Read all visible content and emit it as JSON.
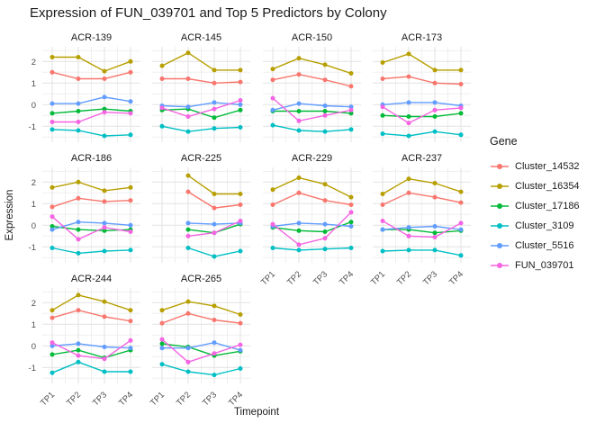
{
  "chart_data": {
    "type": "line",
    "title": "Expression of FUN_039701 and Top 5 Predictors by Colony",
    "xlabel": "Timepoint",
    "ylabel": "Expression",
    "legend_title": "Gene",
    "categories": [
      "TP1",
      "TP2",
      "TP3",
      "TP4"
    ],
    "ylim": [
      -1.74,
      2.68
    ],
    "yticks": [
      2,
      1,
      0,
      -1
    ],
    "yticks_minor": [
      2.5,
      1.5,
      0.5,
      -0.5,
      -1.5
    ],
    "grid": true,
    "legend_position": "right",
    "series": [
      {
        "name": "Cluster_14532",
        "color": "#F8766D"
      },
      {
        "name": "Cluster_16354",
        "color": "#B79F00"
      },
      {
        "name": "Cluster_17186",
        "color": "#00BA38"
      },
      {
        "name": "Cluster_3109",
        "color": "#00BFC4"
      },
      {
        "name": "Cluster_5516",
        "color": "#619CFF"
      },
      {
        "name": "FUN_039701",
        "color": "#F564E2"
      }
    ],
    "facets": [
      {
        "name": "ACR-139",
        "values": {
          "Cluster_14532": [
            1.5,
            1.2,
            1.2,
            1.5
          ],
          "Cluster_16354": [
            2.2,
            2.2,
            1.55,
            2.0
          ],
          "Cluster_17186": [
            -0.4,
            -0.3,
            -0.2,
            -0.3
          ],
          "Cluster_3109": [
            -1.15,
            -1.2,
            -1.45,
            -1.4
          ],
          "Cluster_5516": [
            0.05,
            0.05,
            0.35,
            0.15
          ],
          "FUN_039701": [
            -0.8,
            -0.8,
            -0.35,
            -0.4
          ]
        }
      },
      {
        "name": "ACR-145",
        "values": {
          "Cluster_14532": [
            1.2,
            1.2,
            1.0,
            1.05
          ],
          "Cluster_16354": [
            1.8,
            2.4,
            1.6,
            1.6
          ],
          "Cluster_17186": [
            -0.25,
            -0.2,
            -0.6,
            -0.25
          ],
          "Cluster_3109": [
            -1.0,
            -1.25,
            -1.1,
            -1.05
          ],
          "Cluster_5516": [
            -0.05,
            -0.1,
            0.1,
            0.0
          ],
          "FUN_039701": [
            -0.15,
            -0.55,
            -0.2,
            0.2
          ]
        }
      },
      {
        "name": "ACR-150",
        "values": {
          "Cluster_14532": [
            1.15,
            1.4,
            1.15,
            0.85
          ],
          "Cluster_16354": [
            1.65,
            2.15,
            1.85,
            1.45
          ],
          "Cluster_17186": [
            -0.3,
            -0.3,
            -0.3,
            -0.4
          ],
          "Cluster_3109": [
            -0.95,
            -1.2,
            -1.25,
            -1.15
          ],
          "Cluster_5516": [
            -0.25,
            0.05,
            -0.05,
            -0.1
          ],
          "FUN_039701": [
            0.3,
            -0.75,
            -0.5,
            -0.25
          ]
        }
      },
      {
        "name": "ACR-173",
        "values": {
          "Cluster_14532": [
            1.2,
            1.3,
            1.0,
            0.95
          ],
          "Cluster_16354": [
            1.95,
            2.35,
            1.6,
            1.6
          ],
          "Cluster_17186": [
            -0.5,
            -0.55,
            -0.55,
            -0.4
          ],
          "Cluster_3109": [
            -1.35,
            -1.45,
            -1.25,
            -1.4
          ],
          "Cluster_5516": [
            0.0,
            0.1,
            0.1,
            -0.05
          ],
          "FUN_039701": [
            -0.1,
            -0.85,
            -0.25,
            -0.15
          ]
        }
      },
      {
        "name": "ACR-186",
        "values": {
          "Cluster_14532": [
            0.85,
            1.25,
            1.1,
            1.15
          ],
          "Cluster_16354": [
            1.75,
            2.0,
            1.6,
            1.75
          ],
          "Cluster_17186": [
            -0.05,
            -0.2,
            -0.25,
            -0.2
          ],
          "Cluster_3109": [
            -1.05,
            -1.3,
            -1.2,
            -1.15
          ],
          "Cluster_5516": [
            -0.2,
            0.15,
            0.1,
            0.0
          ],
          "FUN_039701": [
            0.4,
            -0.65,
            -0.1,
            -0.3
          ]
        }
      },
      {
        "name": "ACR-225",
        "values": {
          "Cluster_14532": [
            null,
            1.55,
            0.8,
            0.95
          ],
          "Cluster_16354": [
            null,
            2.3,
            1.45,
            1.45
          ],
          "Cluster_17186": [
            null,
            -0.2,
            -0.35,
            0.05
          ],
          "Cluster_3109": [
            null,
            -1.05,
            -1.45,
            -1.2
          ],
          "Cluster_5516": [
            null,
            0.1,
            0.05,
            0.1
          ],
          "FUN_039701": [
            null,
            -0.5,
            -0.35,
            0.2
          ]
        }
      },
      {
        "name": "ACR-229",
        "values": {
          "Cluster_14532": [
            0.95,
            1.5,
            1.15,
            0.95
          ],
          "Cluster_16354": [
            1.65,
            2.2,
            1.9,
            1.3
          ],
          "Cluster_17186": [
            -0.1,
            -0.25,
            -0.3,
            0.15
          ],
          "Cluster_3109": [
            -1.05,
            -1.15,
            -1.1,
            -1.05
          ],
          "Cluster_5516": [
            -0.05,
            0.1,
            0.05,
            -0.05
          ],
          "FUN_039701": [
            0.05,
            -0.9,
            -0.6,
            0.6
          ]
        }
      },
      {
        "name": "ACR-237",
        "values": {
          "Cluster_14532": [
            0.95,
            1.5,
            1.3,
            1.05
          ],
          "Cluster_16354": [
            1.45,
            2.15,
            1.95,
            1.55
          ],
          "Cluster_17186": [
            -0.2,
            -0.2,
            -0.35,
            -0.25
          ],
          "Cluster_3109": [
            -1.2,
            -1.15,
            -1.15,
            -1.4
          ],
          "Cluster_5516": [
            -0.2,
            -0.1,
            -0.05,
            -0.2
          ],
          "FUN_039701": [
            0.2,
            -0.5,
            -0.55,
            0.1
          ]
        }
      },
      {
        "name": "ACR-244",
        "values": {
          "Cluster_14532": [
            1.3,
            1.65,
            1.35,
            1.15
          ],
          "Cluster_16354": [
            1.65,
            2.35,
            2.05,
            1.65
          ],
          "Cluster_17186": [
            -0.4,
            -0.2,
            -0.55,
            -0.2
          ],
          "Cluster_3109": [
            -1.25,
            -0.75,
            -1.2,
            -1.2
          ],
          "Cluster_5516": [
            0.0,
            0.1,
            -0.05,
            -0.1
          ],
          "FUN_039701": [
            0.15,
            -0.45,
            -0.6,
            0.25
          ]
        }
      },
      {
        "name": "ACR-265",
        "values": {
          "Cluster_14532": [
            1.05,
            1.5,
            1.2,
            1.05
          ],
          "Cluster_16354": [
            1.65,
            2.05,
            1.85,
            1.45
          ],
          "Cluster_17186": [
            0.1,
            -0.05,
            -0.45,
            -0.25
          ],
          "Cluster_3109": [
            -0.85,
            -1.2,
            -1.35,
            -1.05
          ],
          "Cluster_5516": [
            -0.1,
            -0.1,
            0.15,
            -0.2
          ],
          "FUN_039701": [
            0.3,
            -0.75,
            -0.35,
            0.05
          ]
        }
      }
    ]
  }
}
